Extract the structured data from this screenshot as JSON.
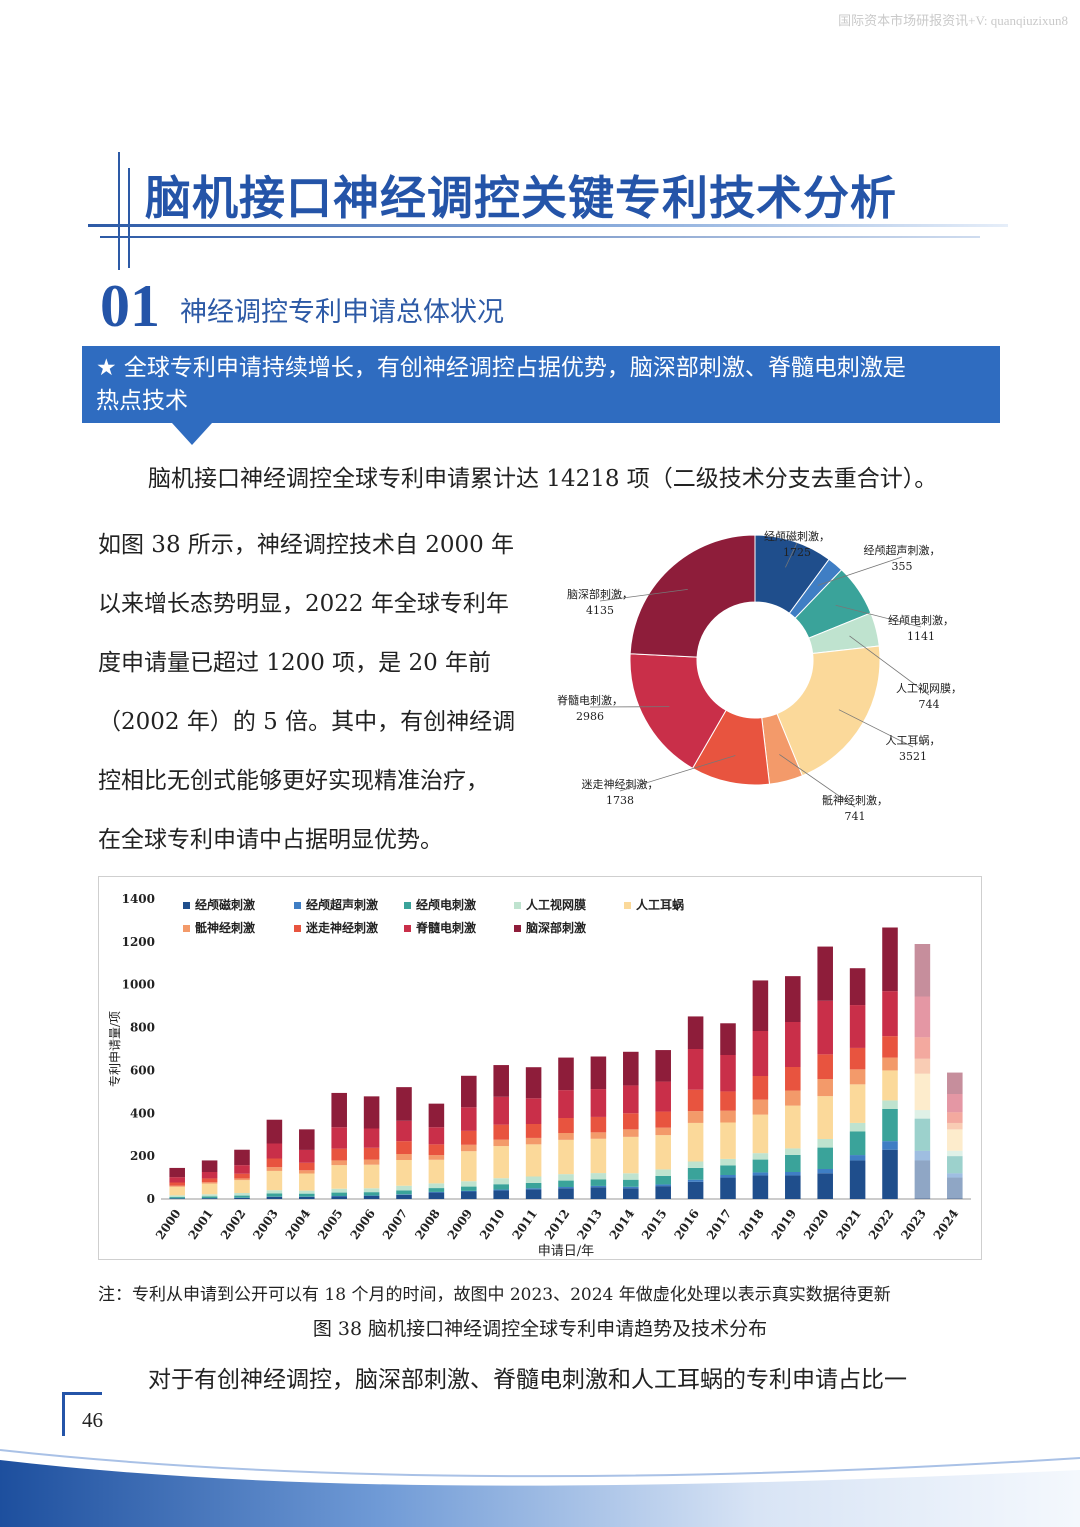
{
  "watermark": "国际资本市场研报资讯+V: quanqiuzixun8",
  "main_title": "脑机接口神经调控关键专利技术分析",
  "section": {
    "number": "01",
    "title": "神经调控专利申请总体状况"
  },
  "banner": {
    "line1": "★ 全球专利申请持续增长，有创神经调控占据优势，脑深部刺激、脊髓电刺激是",
    "line2": "热点技术"
  },
  "para1": "脑机接口神经调控全球专利申请累计达 14218 项（二级技术分支去重合计）。",
  "para2": [
    "如图 38 所示，神经调控技术自 2000 年",
    "以来增长态势明显，2022 年全球专利年",
    "度申请量已超过 1200 项，是 20 年前",
    "（2002 年）的 5 倍。其中，有创神经调",
    "控相比无创式能够更好实现精准治疗，",
    "在全球专利申请中占据明显优势。"
  ],
  "chart_data": [
    {
      "type": "pie",
      "title": "",
      "labels": [
        "经颅磁刺激",
        "经颅超声刺激",
        "经颅电刺激",
        "人工视网膜",
        "人工耳蜗",
        "骶神经刺激",
        "迷走神经刺激",
        "脊髓电刺激",
        "脑深部刺激"
      ],
      "values": [
        1725,
        355,
        1141,
        744,
        3521,
        741,
        1738,
        2986,
        4135
      ],
      "colors": [
        "#1f4e8c",
        "#3f7ec4",
        "#3aa39a",
        "#bfe3cf",
        "#fbd99a",
        "#f39a6a",
        "#e8543f",
        "#c92f49",
        "#8e1d3a"
      ]
    },
    {
      "type": "bar",
      "stacked": true,
      "title": "",
      "xlabel": "申请日/年",
      "ylabel": "专利申请量/项",
      "ylim": [
        0,
        1400
      ],
      "yticks": [
        "0",
        "200",
        "400",
        "600",
        "800",
        "1000",
        "1200",
        "1400"
      ],
      "categories": [
        "2000",
        "2001",
        "2002",
        "2003",
        "2004",
        "2005",
        "2006",
        "2007",
        "2008",
        "2009",
        "2010",
        "2011",
        "2012",
        "2013",
        "2014",
        "2015",
        "2016",
        "2017",
        "2018",
        "2019",
        "2020",
        "2021",
        "2022",
        "2023",
        "2024"
      ],
      "faded_categories": [
        "2023",
        "2024"
      ],
      "series": [
        {
          "name": "经颅磁刺激",
          "color": "#1f4e8c",
          "values": [
            3,
            4,
            5,
            10,
            10,
            12,
            14,
            20,
            30,
            35,
            40,
            45,
            50,
            55,
            50,
            60,
            80,
            100,
            110,
            110,
            120,
            180,
            230,
            180,
            100
          ]
        },
        {
          "name": "经颅超声刺激",
          "color": "#3f7ec4",
          "values": [
            0,
            0,
            1,
            1,
            1,
            2,
            2,
            2,
            3,
            3,
            4,
            5,
            6,
            6,
            7,
            8,
            10,
            12,
            14,
            16,
            20,
            25,
            40,
            45,
            20
          ]
        },
        {
          "name": "经颅电刺激",
          "color": "#3aa39a",
          "values": [
            6,
            8,
            10,
            15,
            14,
            16,
            16,
            18,
            18,
            20,
            25,
            25,
            30,
            30,
            33,
            40,
            55,
            45,
            60,
            80,
            100,
            110,
            150,
            150,
            80
          ]
        },
        {
          "name": "人工视网膜",
          "color": "#bfe3cf",
          "values": [
            8,
            10,
            12,
            15,
            14,
            18,
            18,
            22,
            22,
            25,
            28,
            30,
            30,
            30,
            30,
            30,
            30,
            30,
            30,
            30,
            40,
            40,
            40,
            40,
            25
          ]
        },
        {
          "name": "人工耳蜗",
          "color": "#fbd99a",
          "values": [
            40,
            50,
            60,
            90,
            80,
            110,
            110,
            120,
            110,
            140,
            150,
            150,
            160,
            160,
            170,
            160,
            180,
            170,
            180,
            200,
            200,
            180,
            140,
            170,
            100
          ]
        },
        {
          "name": "骶神经刺激",
          "color": "#f39a6a",
          "values": [
            5,
            6,
            8,
            18,
            15,
            22,
            24,
            28,
            22,
            30,
            30,
            30,
            32,
            30,
            35,
            35,
            55,
            55,
            70,
            70,
            80,
            70,
            60,
            70,
            30
          ]
        },
        {
          "name": "迷走神经刺激",
          "color": "#e8543f",
          "values": [
            15,
            18,
            22,
            40,
            35,
            55,
            55,
            60,
            50,
            65,
            70,
            65,
            70,
            72,
            75,
            75,
            100,
            90,
            110,
            110,
            115,
            100,
            100,
            100,
            50
          ]
        },
        {
          "name": "脊髓电刺激",
          "color": "#c92f49",
          "values": [
            25,
            30,
            40,
            70,
            60,
            100,
            90,
            95,
            80,
            110,
            130,
            120,
            130,
            130,
            130,
            140,
            190,
            170,
            210,
            210,
            250,
            200,
            210,
            190,
            85
          ]
        },
        {
          "name": "脑深部刺激",
          "color": "#8e1d3a",
          "values": [
            43,
            54,
            72,
            111,
            96,
            160,
            150,
            157,
            110,
            147,
            148,
            145,
            152,
            152,
            157,
            147,
            152,
            148,
            236,
            214,
            253,
            172,
            297,
            245,
            100
          ]
        }
      ]
    }
  ],
  "note": "注：专利从申请到公开可以有 18 个月的时间，故图中 2023、2024 年做虚化处理以表示真实数据待更新",
  "caption": "图 38  脑机接口神经调控全球专利申请趋势及技术分布",
  "para3": "对于有创神经调控，脑深部刺激、脊髓电刺激和人工耳蜗的专利申请占比一",
  "page_number": "46"
}
